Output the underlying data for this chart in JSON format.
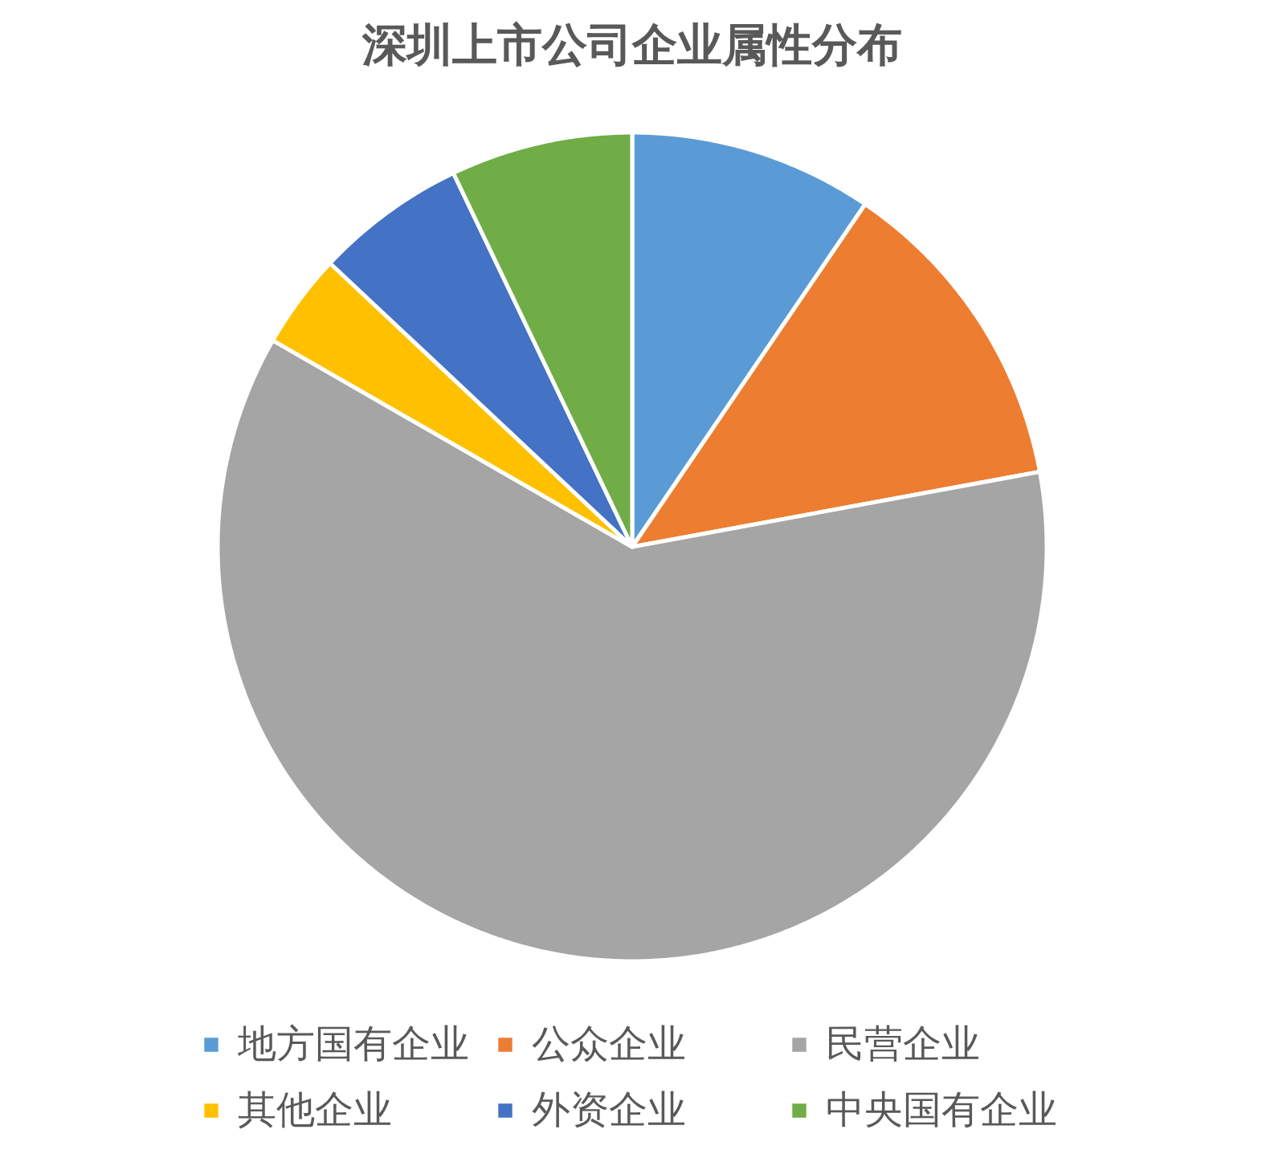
{
  "chart_data": {
    "type": "pie",
    "title": "深圳上市公司企业属性分布",
    "categories": [
      "地方国有企业",
      "公众企业",
      "民营企业",
      "其他企业",
      "外资企业",
      "中央国有企业"
    ],
    "values": [
      9.5,
      12.6,
      61.2,
      3.7,
      5.9,
      7.1
    ],
    "colors": [
      "#5b9bd5",
      "#ed7d31",
      "#a5a5a5",
      "#ffc000",
      "#4472c4",
      "#70ad47"
    ],
    "legend": "bottom"
  }
}
